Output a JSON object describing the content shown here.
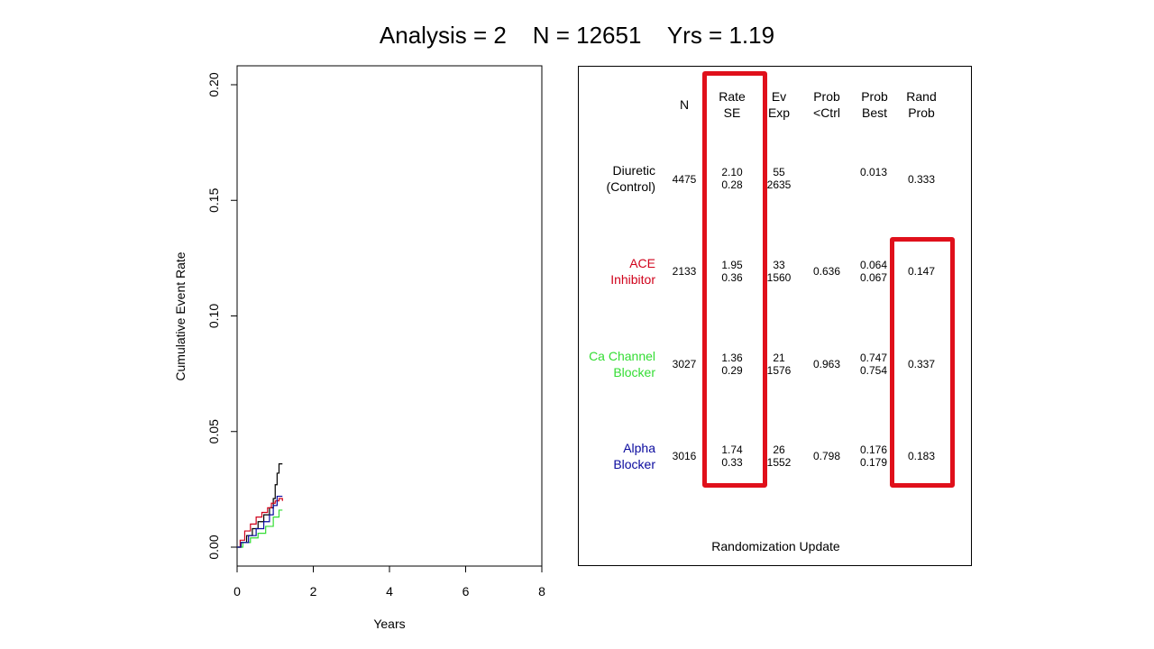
{
  "title": "Analysis = 2    N = 12651    Yrs = 1.19",
  "chart_data": {
    "type": "line",
    "xlabel": "Years",
    "ylabel": "Cumulative Event Rate",
    "xlim": [
      0,
      8
    ],
    "ylim": [
      0,
      0.2
    ],
    "x_ticks": [
      "0",
      "2",
      "4",
      "6",
      "8"
    ],
    "y_ticks": [
      "0.00",
      "0.05",
      "0.10",
      "0.15",
      "0.20"
    ],
    "step": true,
    "series": [
      {
        "color": "#000000",
        "x": [
          0,
          0.1,
          0.25,
          0.4,
          0.55,
          0.7,
          0.85,
          0.95,
          1.0,
          1.05,
          1.1,
          1.19
        ],
        "y": [
          0,
          0.002,
          0.005,
          0.008,
          0.011,
          0.014,
          0.017,
          0.021,
          0.027,
          0.032,
          0.036,
          0.036
        ]
      },
      {
        "color": "#d0021b",
        "x": [
          0,
          0.08,
          0.2,
          0.35,
          0.5,
          0.65,
          0.8,
          0.9,
          1.0,
          1.1,
          1.19
        ],
        "y": [
          0,
          0.003,
          0.007,
          0.01,
          0.013,
          0.015,
          0.017,
          0.019,
          0.02,
          0.021,
          0.02
        ]
      },
      {
        "color": "#33dd33",
        "x": [
          0,
          0.15,
          0.35,
          0.55,
          0.75,
          0.95,
          1.1,
          1.19
        ],
        "y": [
          0,
          0.002,
          0.004,
          0.006,
          0.009,
          0.013,
          0.016,
          0.016
        ]
      },
      {
        "color": "#0a0a9e",
        "x": [
          0,
          0.1,
          0.3,
          0.5,
          0.7,
          0.85,
          0.95,
          1.05,
          1.19
        ],
        "y": [
          0,
          0.002,
          0.005,
          0.008,
          0.011,
          0.014,
          0.018,
          0.022,
          0.022
        ]
      }
    ]
  },
  "table": {
    "headers": {
      "n": "N",
      "rate": [
        "Rate",
        "SE"
      ],
      "ev": [
        "Ev",
        "Exp"
      ],
      "prob_ctrl": [
        "Prob",
        "<Ctrl"
      ],
      "prob_best": [
        "Prob",
        "Best"
      ],
      "rand_prob": [
        "Rand",
        "Prob"
      ]
    },
    "rows": [
      {
        "label": [
          "Diuretic",
          "(Control)"
        ],
        "color": "#000000",
        "n": "4475",
        "rate": "2.10",
        "se": "0.28",
        "ev": "55",
        "exp": "2635",
        "prob_ctrl": "",
        "prob_best_1": "0.013",
        "prob_best_2": "",
        "rand_prob": "0.333"
      },
      {
        "label": [
          "ACE",
          "Inhibitor"
        ],
        "color": "#d0021b",
        "n": "2133",
        "rate": "1.95",
        "se": "0.36",
        "ev": "33",
        "exp": "1560",
        "prob_ctrl": "0.636",
        "prob_best_1": "0.064",
        "prob_best_2": "0.067",
        "rand_prob": "0.147"
      },
      {
        "label": [
          "Ca Channel",
          "Blocker"
        ],
        "color": "#33dd33",
        "n": "3027",
        "rate": "1.36",
        "se": "0.29",
        "ev": "21",
        "exp": "1576",
        "prob_ctrl": "0.963",
        "prob_best_1": "0.747",
        "prob_best_2": "0.754",
        "rand_prob": "0.337"
      },
      {
        "label": [
          "Alpha",
          "Blocker"
        ],
        "color": "#0a0a9e",
        "n": "3016",
        "rate": "1.74",
        "se": "0.33",
        "ev": "26",
        "exp": "1552",
        "prob_ctrl": "0.798",
        "prob_best_1": "0.176",
        "prob_best_2": "0.179",
        "rand_prob": "0.183"
      }
    ],
    "footer": "Randomization Update",
    "highlight_color": "#e0101b"
  }
}
